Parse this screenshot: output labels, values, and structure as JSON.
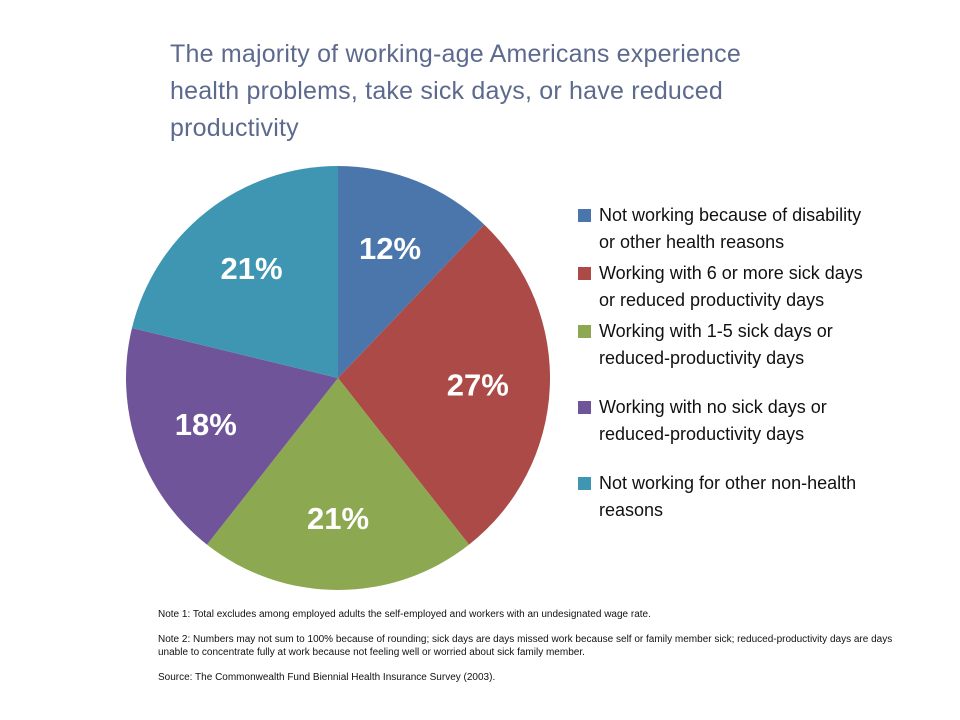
{
  "title": "The majority of working-age Americans experience health problems, take sick days, or have reduced productivity",
  "title_color": "#5D6A8E",
  "background_color": "#FFFFFF",
  "chart_data": {
    "type": "pie",
    "start_angle_deg": -90,
    "direction": "clockwise",
    "legend_position": "right",
    "data_label_color": "#FFFFFF",
    "slices": [
      {
        "label": "Not working because of disability or other health reasons",
        "value": 12,
        "data_label": "12%",
        "color": "#4A76AC"
      },
      {
        "label": "Working with 6 or more sick days or reduced productivity days",
        "value": 27,
        "data_label": "27%",
        "color": "#AC4A47"
      },
      {
        "label": "Working with 1-5 sick days or reduced-productivity days",
        "value": 21,
        "data_label": "21%",
        "color": "#8CA850"
      },
      {
        "label": "Working with no sick days or reduced-productivity days",
        "value": 18,
        "data_label": "18%",
        "color": "#6F5499"
      },
      {
        "label": "Not working for other non-health reasons",
        "value": 21,
        "data_label": "21%",
        "color": "#3E96B2"
      }
    ]
  },
  "notes": {
    "note1": "Note 1: Total excludes among employed adults the self-employed and workers with an undesignated wage rate.",
    "note2": "Note 2: Numbers may not sum to 100% because of rounding; sick days are days missed work because self or family member sick; reduced-productivity days are days unable to concentrate fully at work because not feeling well or worried about sick family member.",
    "source": "Source: The Commonwealth Fund Biennial Health Insurance Survey (2003)."
  }
}
